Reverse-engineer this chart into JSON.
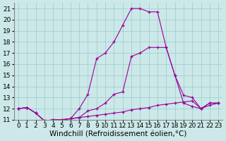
{
  "bg_color": "#cce8e8",
  "line_color": "#990099",
  "grid_color": "#99cccc",
  "xlabel": "Windchill (Refroidissement éolien,°C)",
  "xlabel_fontsize": 7.5,
  "tick_fontsize": 6.5,
  "xlim": [
    -0.5,
    23.5
  ],
  "ylim": [
    11,
    21.5
  ],
  "yticks": [
    11,
    12,
    13,
    14,
    15,
    16,
    17,
    18,
    19,
    20,
    21
  ],
  "xticks": [
    0,
    1,
    2,
    3,
    4,
    5,
    6,
    7,
    8,
    9,
    10,
    11,
    12,
    13,
    14,
    15,
    16,
    17,
    18,
    19,
    20,
    21,
    22,
    23
  ],
  "line_top_x": [
    0,
    1,
    2,
    3,
    4,
    5,
    6,
    7,
    8,
    9,
    10,
    11,
    12,
    13,
    14,
    15,
    16,
    17,
    18,
    19,
    20,
    21,
    22,
    23
  ],
  "line_top_y": [
    12.0,
    12.1,
    11.6,
    10.9,
    11.0,
    11.0,
    11.1,
    12.0,
    13.3,
    16.5,
    17.0,
    18.0,
    19.5,
    21.0,
    21.0,
    20.7,
    20.7,
    17.5,
    15.0,
    12.5,
    12.2,
    12.0,
    12.5,
    12.5
  ],
  "line_mid_x": [
    0,
    1,
    2,
    3,
    4,
    5,
    6,
    7,
    8,
    9,
    10,
    11,
    12,
    13,
    14,
    15,
    16,
    17,
    18,
    19,
    20,
    21,
    22,
    23
  ],
  "line_mid_y": [
    12.0,
    12.1,
    11.6,
    10.9,
    11.0,
    11.0,
    11.1,
    11.2,
    11.8,
    12.0,
    12.5,
    13.3,
    13.5,
    16.7,
    17.0,
    17.5,
    17.5,
    17.5,
    15.0,
    13.2,
    13.0,
    12.0,
    12.5,
    12.5
  ],
  "line_bot_x": [
    0,
    1,
    2,
    3,
    4,
    5,
    6,
    7,
    8,
    9,
    10,
    11,
    12,
    13,
    14,
    15,
    16,
    17,
    18,
    19,
    20,
    21,
    22,
    23
  ],
  "line_bot_y": [
    12.0,
    12.1,
    11.6,
    10.9,
    11.0,
    11.0,
    11.1,
    11.2,
    11.3,
    11.4,
    11.5,
    11.6,
    11.7,
    11.9,
    12.0,
    12.1,
    12.3,
    12.4,
    12.5,
    12.6,
    12.7,
    12.0,
    12.3,
    12.5
  ]
}
